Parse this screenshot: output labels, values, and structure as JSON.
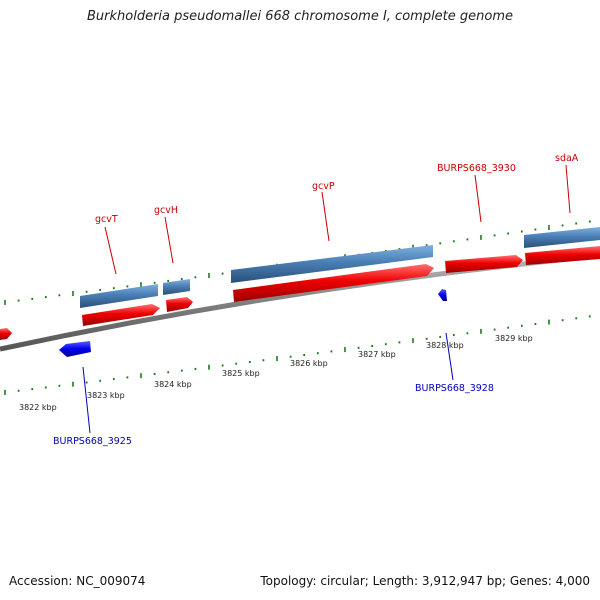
{
  "title": "Burkholderia pseudomallei 668 chromosome I, complete genome",
  "footer": {
    "accession": "Accession: NC_009074",
    "summary": "Topology: circular; Length: 3,912,947 bp; Genes: 4,000"
  },
  "scale_labels": [
    {
      "name": "kbp-3822",
      "text": "3822 kbp"
    },
    {
      "name": "kbp-3823",
      "text": "3823 kbp"
    },
    {
      "name": "kbp-3824",
      "text": "3824 kbp"
    },
    {
      "name": "kbp-3825",
      "text": "3825 kbp"
    },
    {
      "name": "kbp-3826",
      "text": "3826 kbp"
    },
    {
      "name": "kbp-3827",
      "text": "3827 kbp"
    },
    {
      "name": "kbp-3828",
      "text": "3828 kbp"
    },
    {
      "name": "kbp-3829",
      "text": "3829 kbp"
    }
  ],
  "genes_top": [
    {
      "name": "gcvT",
      "label": "gcvT"
    },
    {
      "name": "gcvH",
      "label": "gcvH"
    },
    {
      "name": "gcvP",
      "label": "gcvP"
    },
    {
      "name": "burps668-3930",
      "label": "BURPS668_3930"
    },
    {
      "name": "sdaA",
      "label": "sdaA"
    }
  ],
  "genes_bottom": [
    {
      "name": "burps668-3925",
      "label": "BURPS668_3925"
    },
    {
      "name": "burps668-3928",
      "label": "BURPS668_3928"
    }
  ],
  "colors": {
    "forward_cds": "#ff0000",
    "reverse_cds": "#0000ee",
    "gene_bar": "#4a7fb5",
    "backbone": "#808080",
    "ticks": "#1a7a1a",
    "label_forward": "#cc0000",
    "label_reverse": "#0000bb"
  }
}
